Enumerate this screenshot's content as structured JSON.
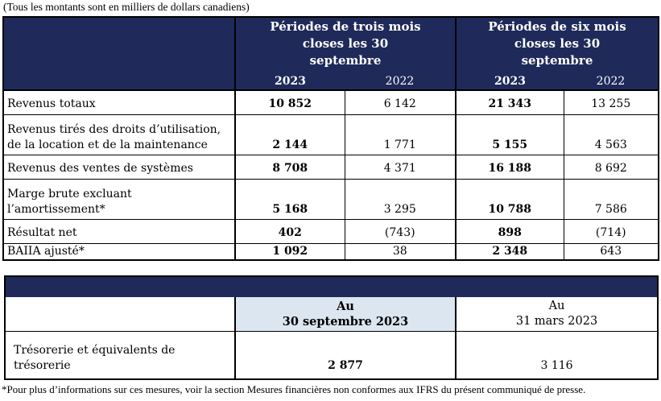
{
  "note_top": "(Tous les montants sont en milliers de dollars canadiens)",
  "table1": {
    "header_three": "Périodes de trois mois closes les 30 septembre",
    "header_six": "Périodes de six mois closes les 30 septembre",
    "years": [
      "2023",
      "2022",
      "2023",
      "2022"
    ],
    "rows": [
      {
        "label_lines": [
          "Revenus totaux"
        ],
        "values": [
          "10 852",
          "6 142",
          "21 343",
          "13 255"
        ]
      },
      {
        "label_lines": [
          "Revenus tirés des droits d’utilisation,",
          "de la location et de la maintenance"
        ],
        "values": [
          "2 144",
          "1 771",
          "5 155",
          "4 563"
        ]
      },
      {
        "label_lines": [
          "Revenus des ventes de systèmes"
        ],
        "values": [
          "8 708",
          "4 371",
          "16 188",
          "8 692"
        ]
      },
      {
        "label_lines": [
          "Marge brute excluant",
          "l’amortissement*"
        ],
        "values": [
          "5 168",
          "3 295",
          "10 788",
          "7 586"
        ]
      },
      {
        "label_lines": [
          "Résultat net"
        ],
        "values": [
          "402",
          "(743)",
          "898",
          "(714)"
        ]
      },
      {
        "label_lines": [
          "BAIIA ajusté*"
        ],
        "values": [
          "1 092",
          "38",
          "2 348",
          "643"
        ]
      }
    ]
  },
  "table2": {
    "col1_line1": "Au",
    "col1_line2": "30 septembre 2023",
    "col2_line1": "Au",
    "col2_line2": "31 mars 2023",
    "row_label_line1": "Trésorerie et équivalents de",
    "row_label_line2": "trésorerie",
    "row_values": [
      "2 877",
      "3 116"
    ]
  },
  "note_bottom": "*Pour plus d’informations sur ces mesures, voir la section Mesures financières non conformes aux IFRS du présent communiqué de presse."
}
